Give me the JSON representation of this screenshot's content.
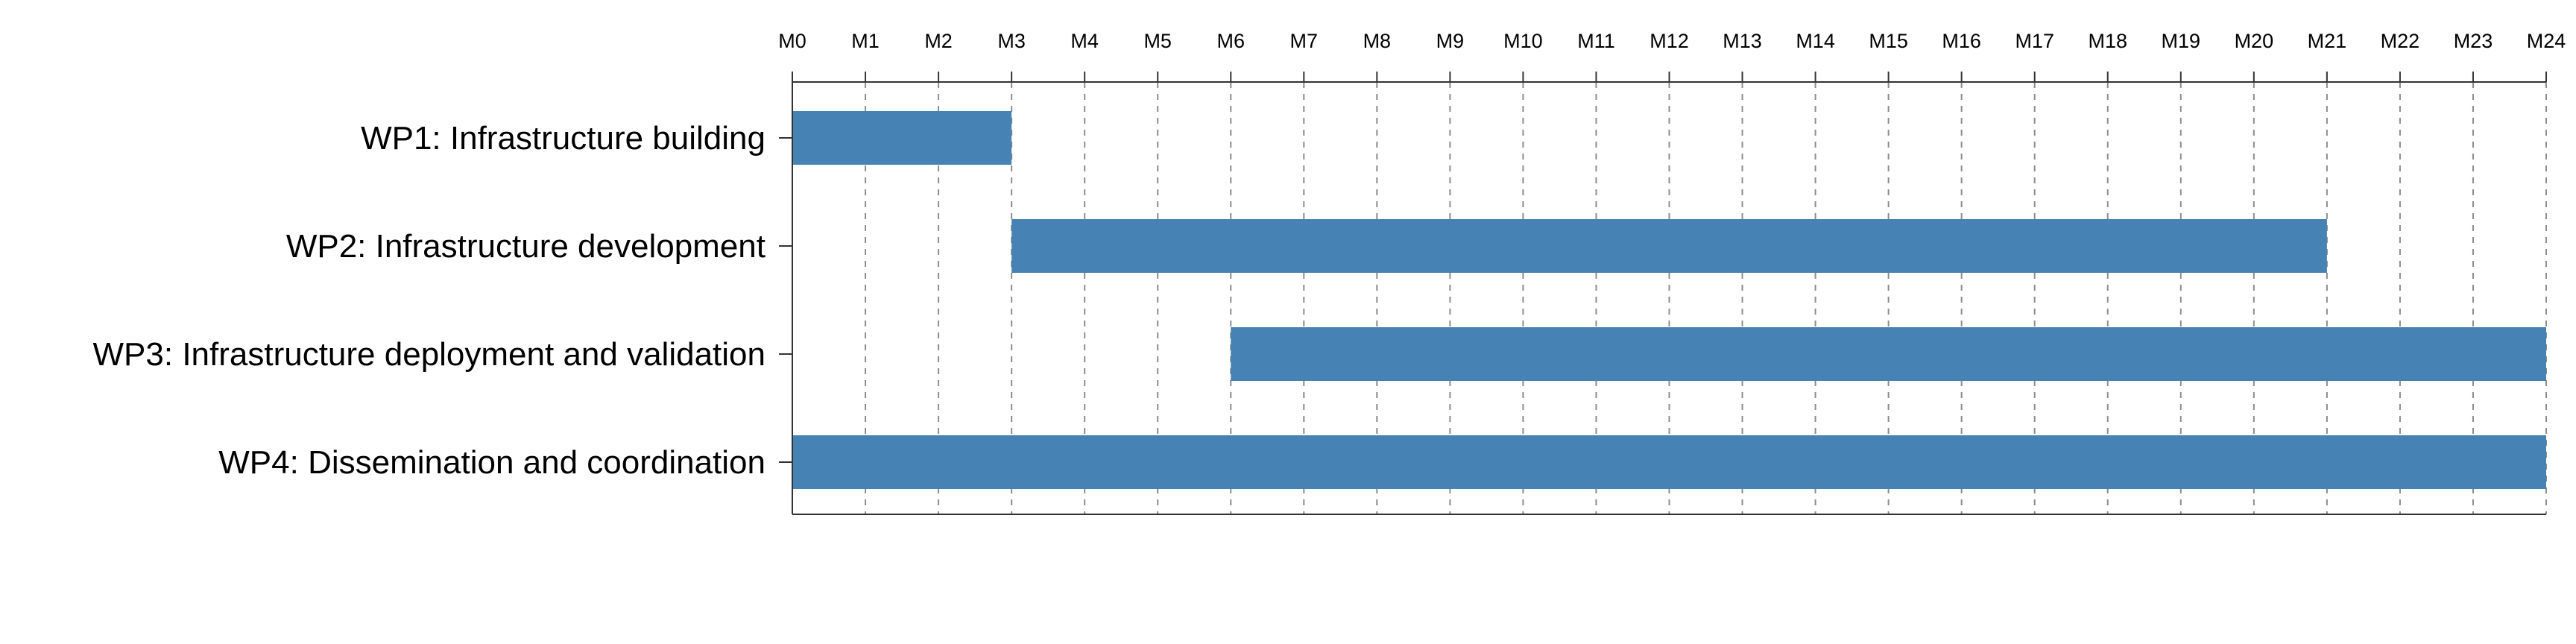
{
  "chart_data": {
    "type": "bar",
    "orientation": "horizontal-gantt",
    "title": "",
    "xlabel": "",
    "ylabel": "",
    "xlim": [
      0,
      24
    ],
    "x_ticks": [
      "M0",
      "M1",
      "M2",
      "M3",
      "M4",
      "M5",
      "M6",
      "M7",
      "M8",
      "M9",
      "M10",
      "M11",
      "M12",
      "M13",
      "M14",
      "M15",
      "M16",
      "M17",
      "M18",
      "M19",
      "M20",
      "M21",
      "M22",
      "M23",
      "M24"
    ],
    "x_axis_position": "top",
    "grid": "vertical dashed",
    "legend": "none",
    "bar_color": "#4682b4",
    "tasks": [
      {
        "label": "WP1: Infrastructure building",
        "start": 0,
        "end": 3
      },
      {
        "label": "WP2: Infrastructure development",
        "start": 3,
        "end": 21
      },
      {
        "label": "WP3: Infrastructure deployment and validation",
        "start": 6,
        "end": 24
      },
      {
        "label": "WP4: Dissemination and coordination",
        "start": 0,
        "end": 24
      }
    ]
  }
}
